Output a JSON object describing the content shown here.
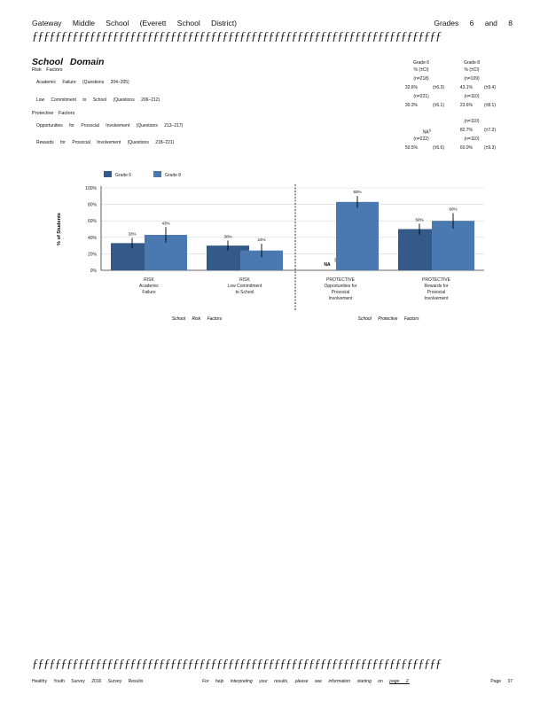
{
  "header": {
    "school": "Gateway Middle School (Everett School District)",
    "grades": "Grades 6 and 8"
  },
  "rule": "ƒƒƒƒƒƒƒƒƒƒƒƒƒƒƒƒƒƒƒƒƒƒƒƒƒƒƒƒƒƒƒƒƒƒƒƒƒƒƒƒƒƒƒƒƒƒƒƒƒƒƒƒƒƒƒƒƒƒƒƒƒƒƒƒƒƒƒƒƒƒƒ",
  "section": {
    "title": "School Domain",
    "risk_heading": "Risk Factors",
    "protective_heading": "Protective Factors",
    "col_grade6": "Grade 6",
    "col_grade8": "Grade 8",
    "col_sub6": "% (±CI)",
    "col_sub8": "% (±CI)",
    "rows": [
      {
        "label": "Academic Failure (Questions 204–205)",
        "n6": "(n=218)",
        "n8": "(n=109)",
        "v6": "32.6%",
        "ci6": "(±6.3)",
        "v8": "43.1%",
        "ci8": "(±9.4)"
      },
      {
        "label": "Low Commitment to School (Questions 206–212)",
        "n6": "(n=221)",
        "n8": "(n=110)",
        "v6": "30.3%",
        "ci6": "(±6.1)",
        "v8": "23.6%",
        "ci8": "(±8.1)"
      },
      {
        "label": "Opportunities for Prosocial Involvement (Questions 213–217)",
        "n6": "",
        "n8": "(n=110)",
        "v6": "NA",
        "sup6": "§",
        "ci6": "",
        "v8": "82.7%",
        "ci8": "(±7.2)"
      },
      {
        "label": "Rewards for Prosocial Involvement (Questions 218–221)",
        "n6": "(n=222)",
        "n8": "(n=110)",
        "v6": "50.5%",
        "ci6": "(±6.6)",
        "v8": "60.0%",
        "ci8": "(±9.3)"
      }
    ]
  },
  "chart_data": {
    "type": "bar",
    "ylabel": "% of Students",
    "ylim": [
      0,
      100
    ],
    "yticks": [
      "0%",
      "20%",
      "40%",
      "60%",
      "80%",
      "100%"
    ],
    "legend_placement": "top-left",
    "categories": [
      [
        "RISK",
        "Academic",
        "Failure"
      ],
      [
        "RISK",
        "Low Commitment",
        "to School"
      ],
      [
        "PROTECTIVE",
        "Opportunities for",
        "Prosocial",
        "Involvement"
      ],
      [
        "PROTECTIVE",
        "Rewards for",
        "Prosocial",
        "Involvement"
      ]
    ],
    "series": [
      {
        "name": "Grade 6",
        "color": "#345a8a",
        "values": [
          33,
          30,
          null,
          50
        ],
        "ci": [
          6.3,
          6.1,
          null,
          6.6
        ],
        "labels": [
          "33%",
          "30%",
          "NA",
          "50%"
        ]
      },
      {
        "name": "Grade 8",
        "color": "#4a78b0",
        "values": [
          43,
          24,
          83,
          60
        ],
        "ci": [
          9.4,
          8.1,
          7.2,
          9.3
        ],
        "labels": [
          "43%",
          "24%",
          "83%",
          "60%"
        ]
      }
    ],
    "na_note": "§",
    "group_labels": [
      "School Risk Factors",
      "School Protective Factors"
    ]
  },
  "footer": {
    "left": "Healthy Youth Survey 2016 Survey Results",
    "center_prefix": "For help interpreting your results, please see information starting on",
    "center_link": "page 2.",
    "page": "Page 37"
  }
}
